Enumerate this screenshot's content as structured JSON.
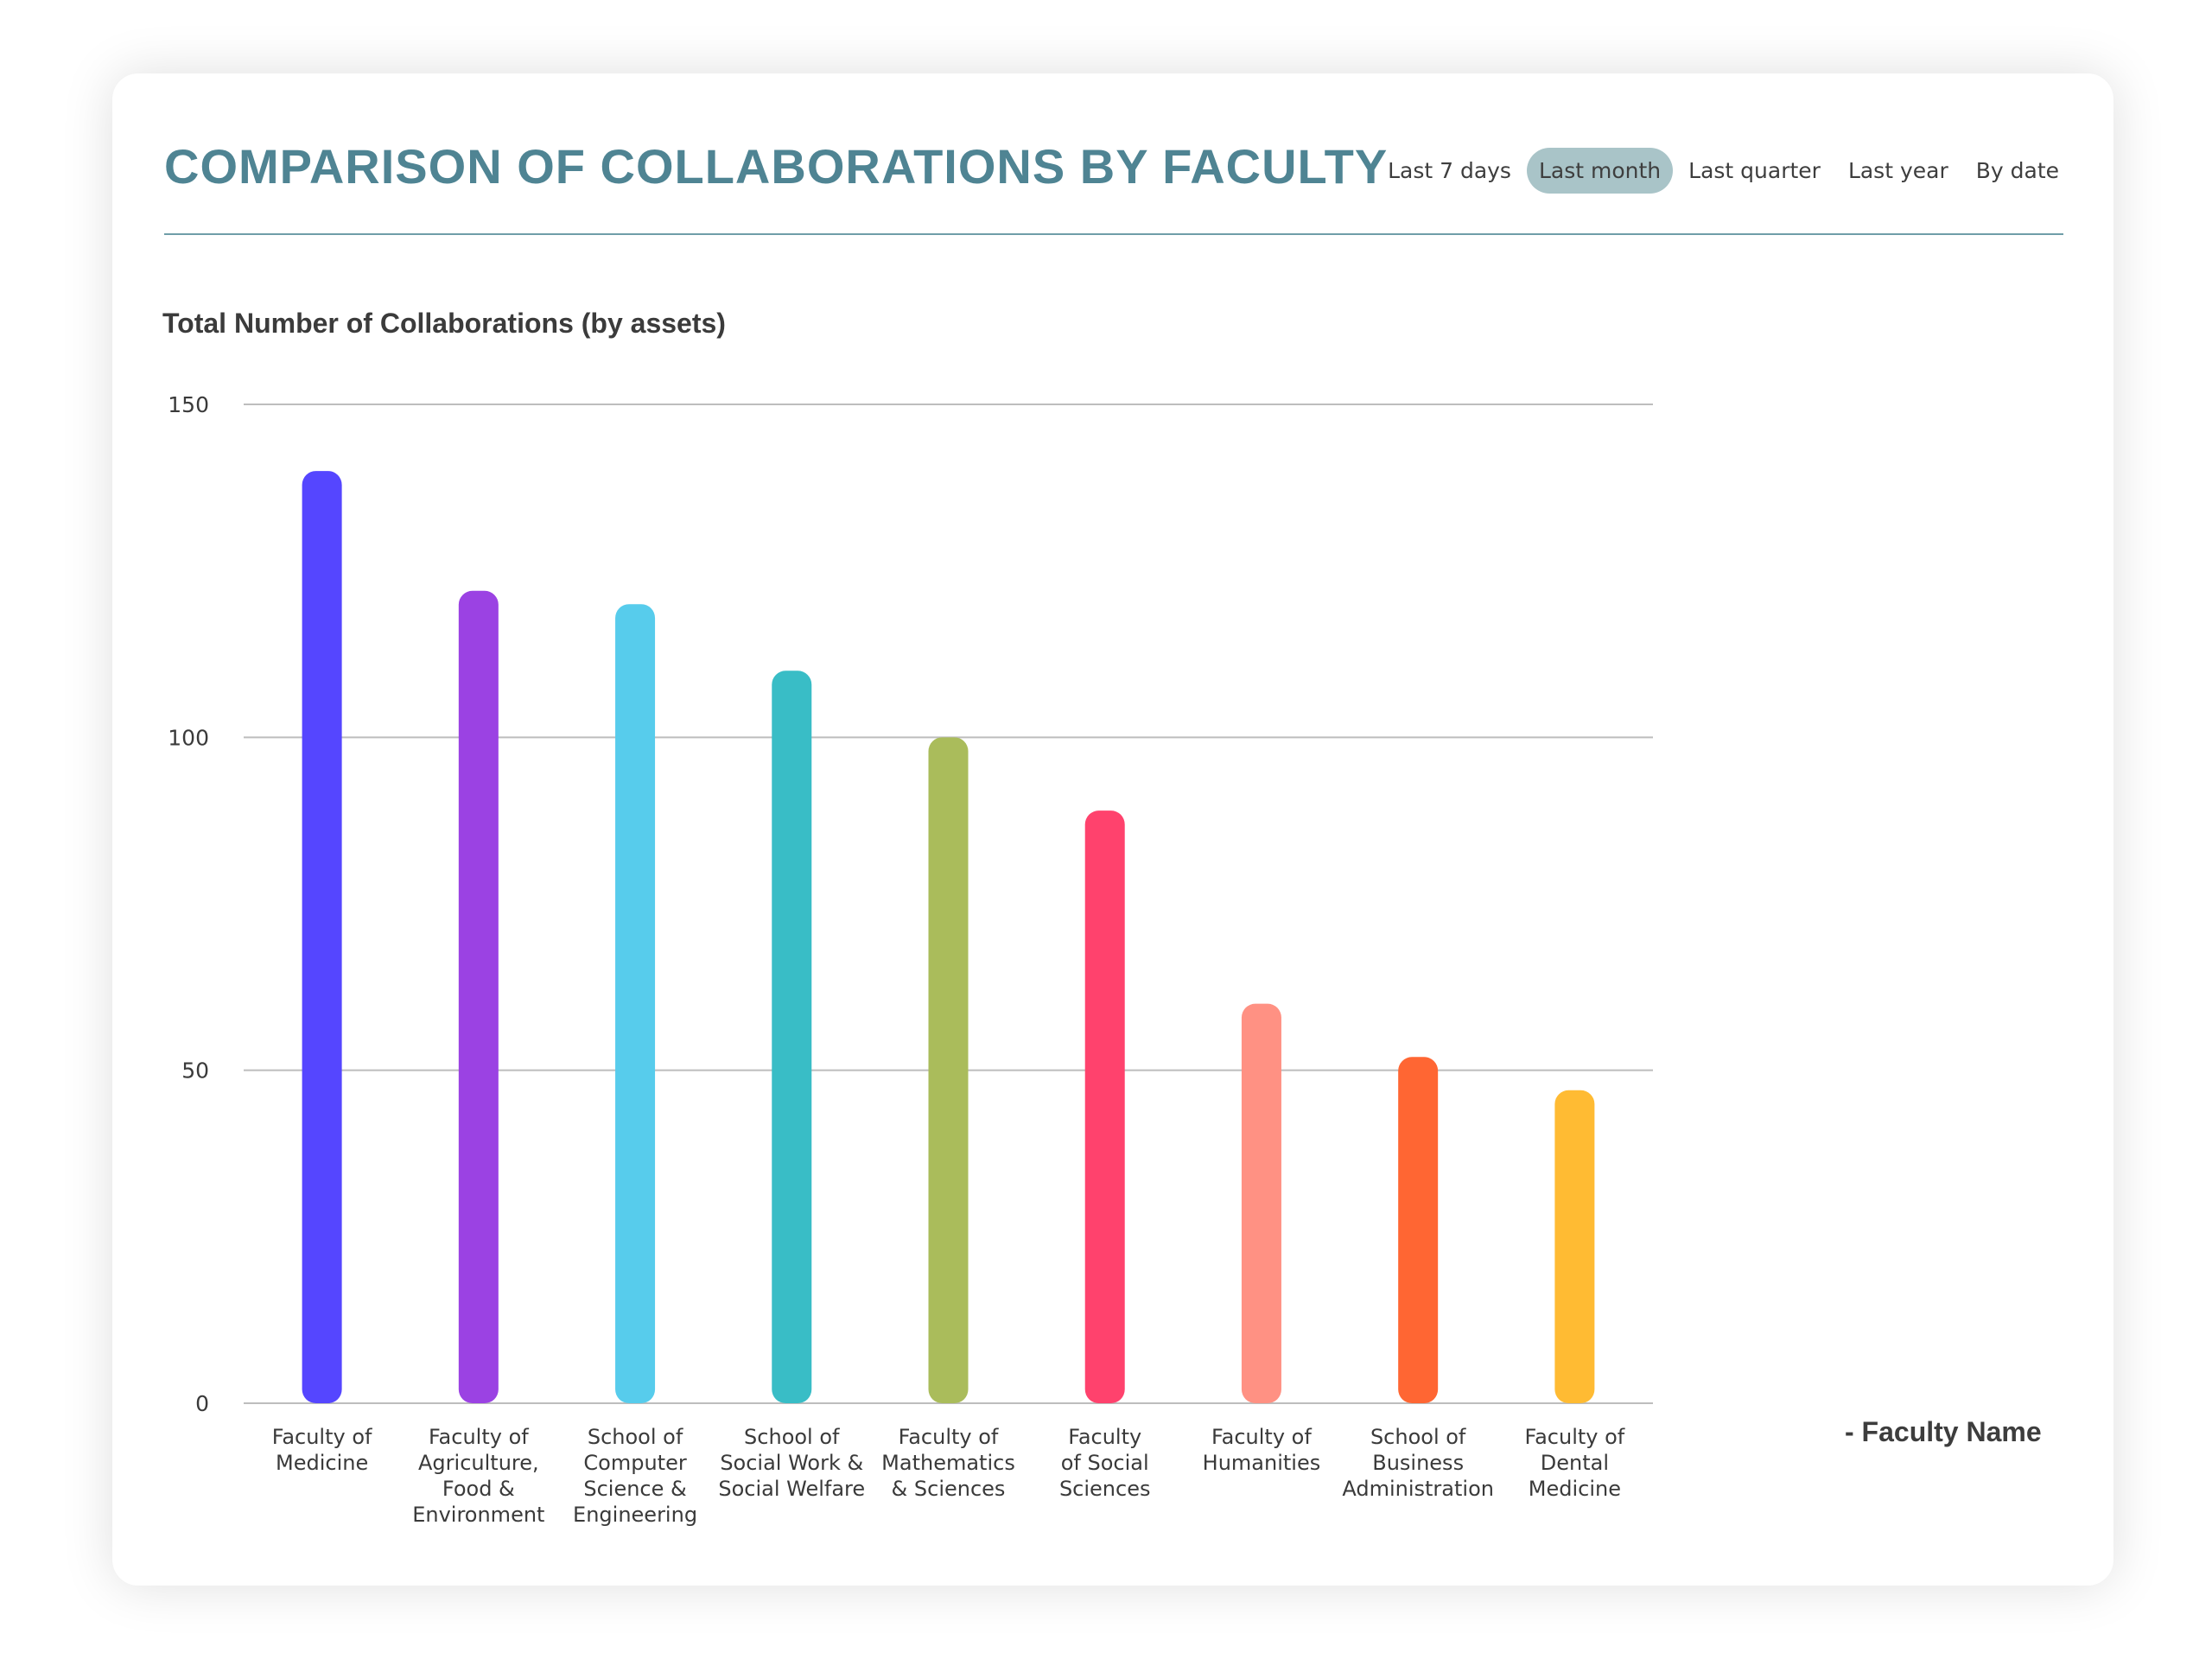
{
  "header": {
    "title": "COMPARISON OF COLLABORATIONS BY FACULTY",
    "tabs": [
      {
        "label": "Last 7 days",
        "active": false
      },
      {
        "label": "Last month",
        "active": true
      },
      {
        "label": "Last quarter",
        "active": false
      },
      {
        "label": "Last year",
        "active": false
      },
      {
        "label": "By date",
        "active": false
      }
    ]
  },
  "colors": {
    "title": "#4f8493",
    "active_tab": "#a9c4c8",
    "divider": "#6f9ea8",
    "grid": "#bdbdbd"
  },
  "legend": {
    "label": "- Faculty Name"
  },
  "chart_data": {
    "type": "bar",
    "title": "COMPARISON OF COLLABORATIONS BY FACULTY",
    "ylabel": "Total Number of Collaborations (by assets)",
    "xlabel": "",
    "ylim": [
      0,
      150
    ],
    "yticks": [
      0,
      50,
      100,
      150
    ],
    "grid": true,
    "legend_position": "right",
    "categories": [
      [
        "Faculty of",
        "Medicine"
      ],
      [
        "Faculty of",
        "Agriculture,",
        "Food &",
        "Environment"
      ],
      [
        "School of",
        "Computer",
        "Science &",
        "Engineering"
      ],
      [
        "School of",
        "Social Work &",
        "Social Welfare"
      ],
      [
        "Faculty of",
        "Mathematics",
        "& Sciences"
      ],
      [
        "Faculty",
        "of Social",
        "Sciences"
      ],
      [
        "Faculty of",
        "Humanities"
      ],
      [
        "School of",
        "Business",
        "Administration"
      ],
      [
        "Faculty of",
        "Dental",
        "Medicine"
      ]
    ],
    "values": [
      140,
      122,
      120,
      110,
      100,
      89,
      60,
      52,
      47
    ],
    "bar_colors": [
      "#5546ff",
      "#9b42e3",
      "#57ccec",
      "#39bdc6",
      "#aabc5b",
      "#ff426d",
      "#ff9183",
      "#ff6633",
      "#ffbb33"
    ]
  }
}
